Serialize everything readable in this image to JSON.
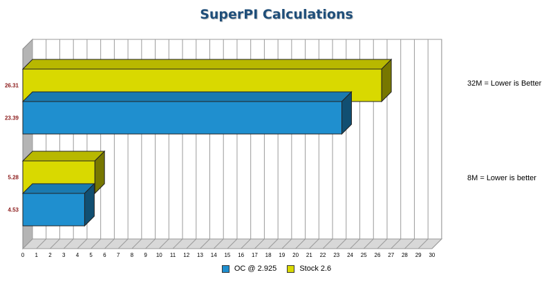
{
  "chart_data": {
    "type": "bar",
    "orientation": "horizontal",
    "title": "SuperPI Calculations",
    "groups": [
      {
        "label": "32M = Lower is Better",
        "bars": [
          {
            "series": "Stock 2.6",
            "value": 26.31,
            "value_label": "26.31"
          },
          {
            "series": "OC @ 2.925",
            "value": 23.39,
            "value_label": "23.39"
          }
        ]
      },
      {
        "label": "8M = Lower is better",
        "bars": [
          {
            "series": "Stock 2.6",
            "value": 5.28,
            "value_label": "5.28"
          },
          {
            "series": "OC @ 2.925",
            "value": 4.53,
            "value_label": "4.53"
          }
        ]
      }
    ],
    "series": [
      {
        "name": "OC @ 2.925",
        "color": "#1f8fcf"
      },
      {
        "name": "Stock 2.6",
        "color": "#d9d900"
      }
    ],
    "x_ticks": [
      "0",
      "1",
      "2",
      "3",
      "4",
      "5",
      "6",
      "7",
      "8",
      "9",
      "10",
      "11",
      "12",
      "13",
      "14",
      "15",
      "16",
      "17",
      "18",
      "19",
      "20",
      "21",
      "22",
      "23",
      "24",
      "25",
      "26",
      "27",
      "28",
      "29",
      "30"
    ],
    "xlim": [
      0,
      30
    ],
    "grid": true,
    "legend_position": "bottom",
    "three_d": true
  },
  "legend": {
    "items": [
      {
        "label": "OC @ 2.925",
        "color": "#1f8fcf"
      },
      {
        "label": "Stock 2.6",
        "color": "#d9d900"
      }
    ]
  }
}
